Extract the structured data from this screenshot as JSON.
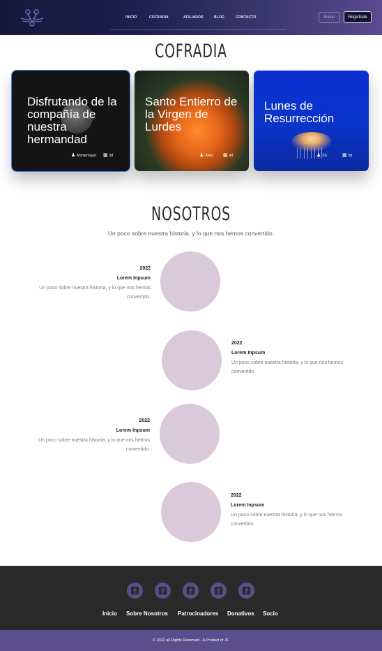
{
  "header": {
    "nav": [
      "INICIO",
      "COFRADIA",
      "AFILIADOS",
      "BLOG",
      "CONTACTO"
    ],
    "login_label": "Iniciar",
    "register_label": "Registrate"
  },
  "cofradia": {
    "title": "COFRADIA",
    "cards": [
      {
        "title": "Disfrutando de la compañía de nuestra hermandad",
        "author": "Montemayor",
        "age": "3d"
      },
      {
        "title": "Santo Entierro de la Virgen de Lurdes",
        "author": "Ávila",
        "age": "4d"
      },
      {
        "title": "Lunes de Resurrección",
        "author": "SS",
        "age": "5d"
      }
    ]
  },
  "nosotros": {
    "title": "NOSOTROS",
    "subtitle": "Un poco sobre nuestra historia, y lo que nos hemos convertido.",
    "timeline": [
      {
        "year": "2022",
        "title": "Lorem Inpsum",
        "desc": "Un poco sobre nuestra historia, y lo que nos hemos convertido."
      },
      {
        "year": "2022",
        "title": "Lorem Inpsum",
        "desc": "Un poco sobre nuestra historia, y lo que nos hemos convertido."
      },
      {
        "year": "2022",
        "title": "Lorem Inpsum",
        "desc": "Un poco sobre nuestra historia, y lo que nos hemos convertido."
      },
      {
        "year": "2022",
        "title": "Lorem Inpsum",
        "desc": "Un poco sobre nuestra historia, y lo que nos hemos convertido."
      }
    ]
  },
  "footer": {
    "social_icons": [
      "facebook-icon",
      "facebook-icon",
      "facebook-icon",
      "facebook-icon",
      "facebook-icon"
    ],
    "links": [
      "Inicio",
      "Sobre Nosotros",
      "Patrocinadores",
      "Donativos",
      "Socio"
    ],
    "copyright": "© 2022 all Rights Reserved - A Product of JF."
  },
  "colors": {
    "accent": "#5b4e8c",
    "circle": "#dac9d9",
    "footer_bg": "#2a2a2a"
  }
}
